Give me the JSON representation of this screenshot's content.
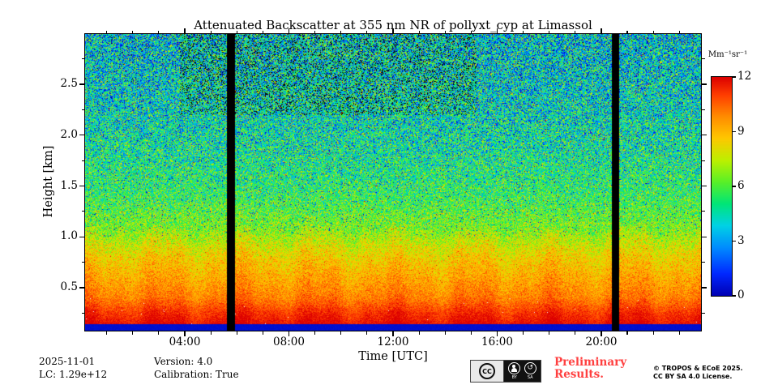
{
  "chart_data": {
    "type": "heatmap",
    "title": "Attenuated Backscatter at 355 nm NR of pollyxt_cyp at Limassol",
    "xlabel": "Time [UTC]",
    "ylabel": "Height [km]",
    "x_range_hours": [
      0.17,
      23.83
    ],
    "y_range_km": [
      0.078,
      2.994
    ],
    "x_ticks": [
      {
        "hour": 4,
        "label": "04:00"
      },
      {
        "hour": 8,
        "label": "08:00"
      },
      {
        "hour": 12,
        "label": "12:00"
      },
      {
        "hour": 16,
        "label": "16:00"
      },
      {
        "hour": 20,
        "label": "20:00"
      }
    ],
    "y_ticks": [
      {
        "km": 0.5,
        "label": "0.5"
      },
      {
        "km": 1.0,
        "label": "1.0"
      },
      {
        "km": 1.5,
        "label": "1.5"
      },
      {
        "km": 2.0,
        "label": "2.0"
      },
      {
        "km": 2.5,
        "label": "2.5"
      }
    ],
    "colorbar": {
      "label": "Mm⁻¹sr⁻¹",
      "range": [
        0,
        12
      ],
      "ticks": [
        {
          "v": 12,
          "label": "12"
        },
        {
          "v": 9,
          "label": "9"
        },
        {
          "v": 6,
          "label": "6"
        },
        {
          "v": 3,
          "label": "3"
        },
        {
          "v": 0,
          "label": "0"
        }
      ],
      "colormap": "jet"
    },
    "colormap_stops": [
      {
        "u": 0.0,
        "hex": "#0000b4"
      },
      {
        "u": 0.1,
        "hex": "#0028ff"
      },
      {
        "u": 0.22,
        "hex": "#008cff"
      },
      {
        "u": 0.32,
        "hex": "#00d2e6"
      },
      {
        "u": 0.42,
        "hex": "#00e678"
      },
      {
        "u": 0.52,
        "hex": "#5af028"
      },
      {
        "u": 0.62,
        "hex": "#bef000"
      },
      {
        "u": 0.72,
        "hex": "#ffc800"
      },
      {
        "u": 0.82,
        "hex": "#ff8c00"
      },
      {
        "u": 0.92,
        "hex": "#ff3c00"
      },
      {
        "u": 1.0,
        "hex": "#dc0000"
      }
    ],
    "profile": {
      "height_km": [
        0.145,
        0.25,
        0.4,
        0.6,
        0.8,
        0.95,
        1.1,
        1.4,
        1.8,
        2.2,
        2.6,
        3.0
      ],
      "value": [
        11.8,
        11.3,
        10.1,
        9.3,
        8.5,
        7.6,
        6.6,
        5.6,
        4.9,
        4.4,
        4.1,
        3.9
      ]
    },
    "noise_sigma": {
      "height_km": [
        0.145,
        0.4,
        0.8,
        1.2,
        1.8,
        2.4,
        3.0
      ],
      "sigma": [
        0.45,
        0.75,
        1.1,
        1.7,
        2.3,
        2.7,
        2.95
      ]
    },
    "gaps_hours": [
      [
        5.63,
        5.93
      ],
      [
        20.42,
        20.7
      ]
    ],
    "surface_strip": {
      "top_km": 0.145,
      "value": 0.45
    },
    "dark_patch": {
      "t_range": [
        3.8,
        15.2
      ],
      "h_min_km": 2.2
    }
  },
  "footer": {
    "date": "2025-11-01",
    "lc": "LC: 1.29e+12",
    "version": "Version: 4.0",
    "calibration": "Calibration: True",
    "preliminary_line1": "Preliminary",
    "preliminary_line2": "Results.",
    "preliminary_color": "#ff4040",
    "license_line1": "© TROPOS & ECoE 2025.",
    "license_line2": "CC BY SA 4.0 License.",
    "badge": {
      "cc": "CC",
      "by": "BY",
      "sa": "SA"
    }
  }
}
